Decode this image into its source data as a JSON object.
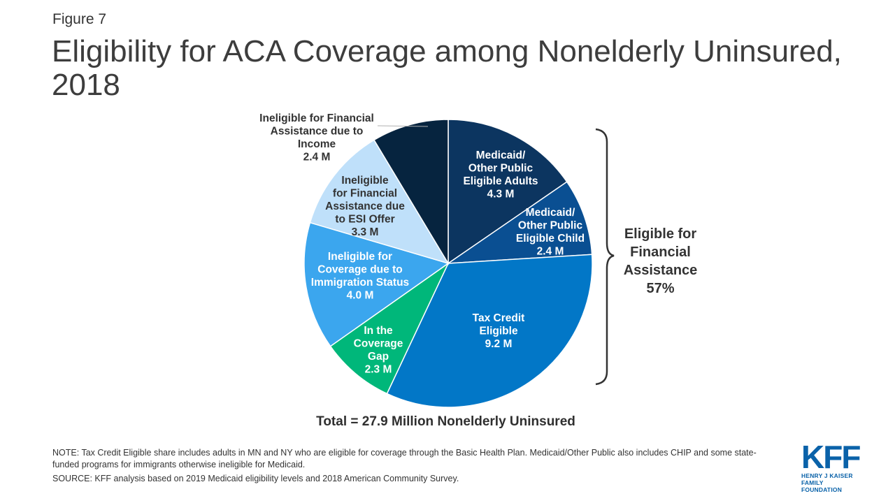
{
  "figure_label": "Figure 7",
  "title": "Eligibility for ACA Coverage among Nonelderly Uninsured, 2018",
  "chart_data": {
    "type": "pie",
    "title": "Eligibility for ACA Coverage among Nonelderly Uninsured, 2018",
    "unit": "M",
    "slices": [
      {
        "lines": [
          "Medicaid/",
          "Other Public",
          "Eligible Adults",
          "4.3 M"
        ],
        "value": 4.3,
        "color": "#0c3560"
      },
      {
        "lines": [
          "Medicaid/",
          "Other Public",
          "Eligible Child",
          "2.4 M"
        ],
        "value": 2.4,
        "color": "#0a4f92"
      },
      {
        "lines": [
          "Tax Credit",
          "Eligible",
          "9.2 M"
        ],
        "value": 9.2,
        "color": "#0277c7"
      },
      {
        "lines": [
          "In the",
          "Coverage",
          "Gap",
          "2.3 M"
        ],
        "value": 2.3,
        "color": "#00b77a"
      },
      {
        "lines": [
          "Ineligible for",
          "Coverage due to",
          "Immigration Status",
          "4.0 M"
        ],
        "value": 4.0,
        "color": "#3ba6ee"
      },
      {
        "lines": [
          "Ineligible",
          "for Financial",
          "Assistance due",
          "to ESI Offer",
          "3.3 M"
        ],
        "value": 3.3,
        "color": "#bfe0fa"
      },
      {
        "lines": [
          "Ineligible for Financial",
          "Assistance due to",
          "Income",
          "2.4 M"
        ],
        "value": 2.4,
        "color": "#06243f"
      }
    ],
    "bracket_label": [
      "Eligible for",
      "Financial",
      "Assistance",
      "57%"
    ],
    "total_label": "Total = 27.9 Million Nonelderly Uninsured"
  },
  "note": "NOTE: Tax Credit Eligible share includes adults in MN and NY who are eligible for coverage through the Basic Health Plan. Medicaid/Other Public also includes CHIP and some state-funded programs for immigrants otherwise ineligible for Medicaid.",
  "source": "SOURCE: KFF analysis based on 2019 Medicaid eligibility levels and 2018 American Community Survey.",
  "logo": {
    "mark": "KFF",
    "line1": "HENRY J KAISER",
    "line2": "FAMILY FOUNDATION"
  }
}
